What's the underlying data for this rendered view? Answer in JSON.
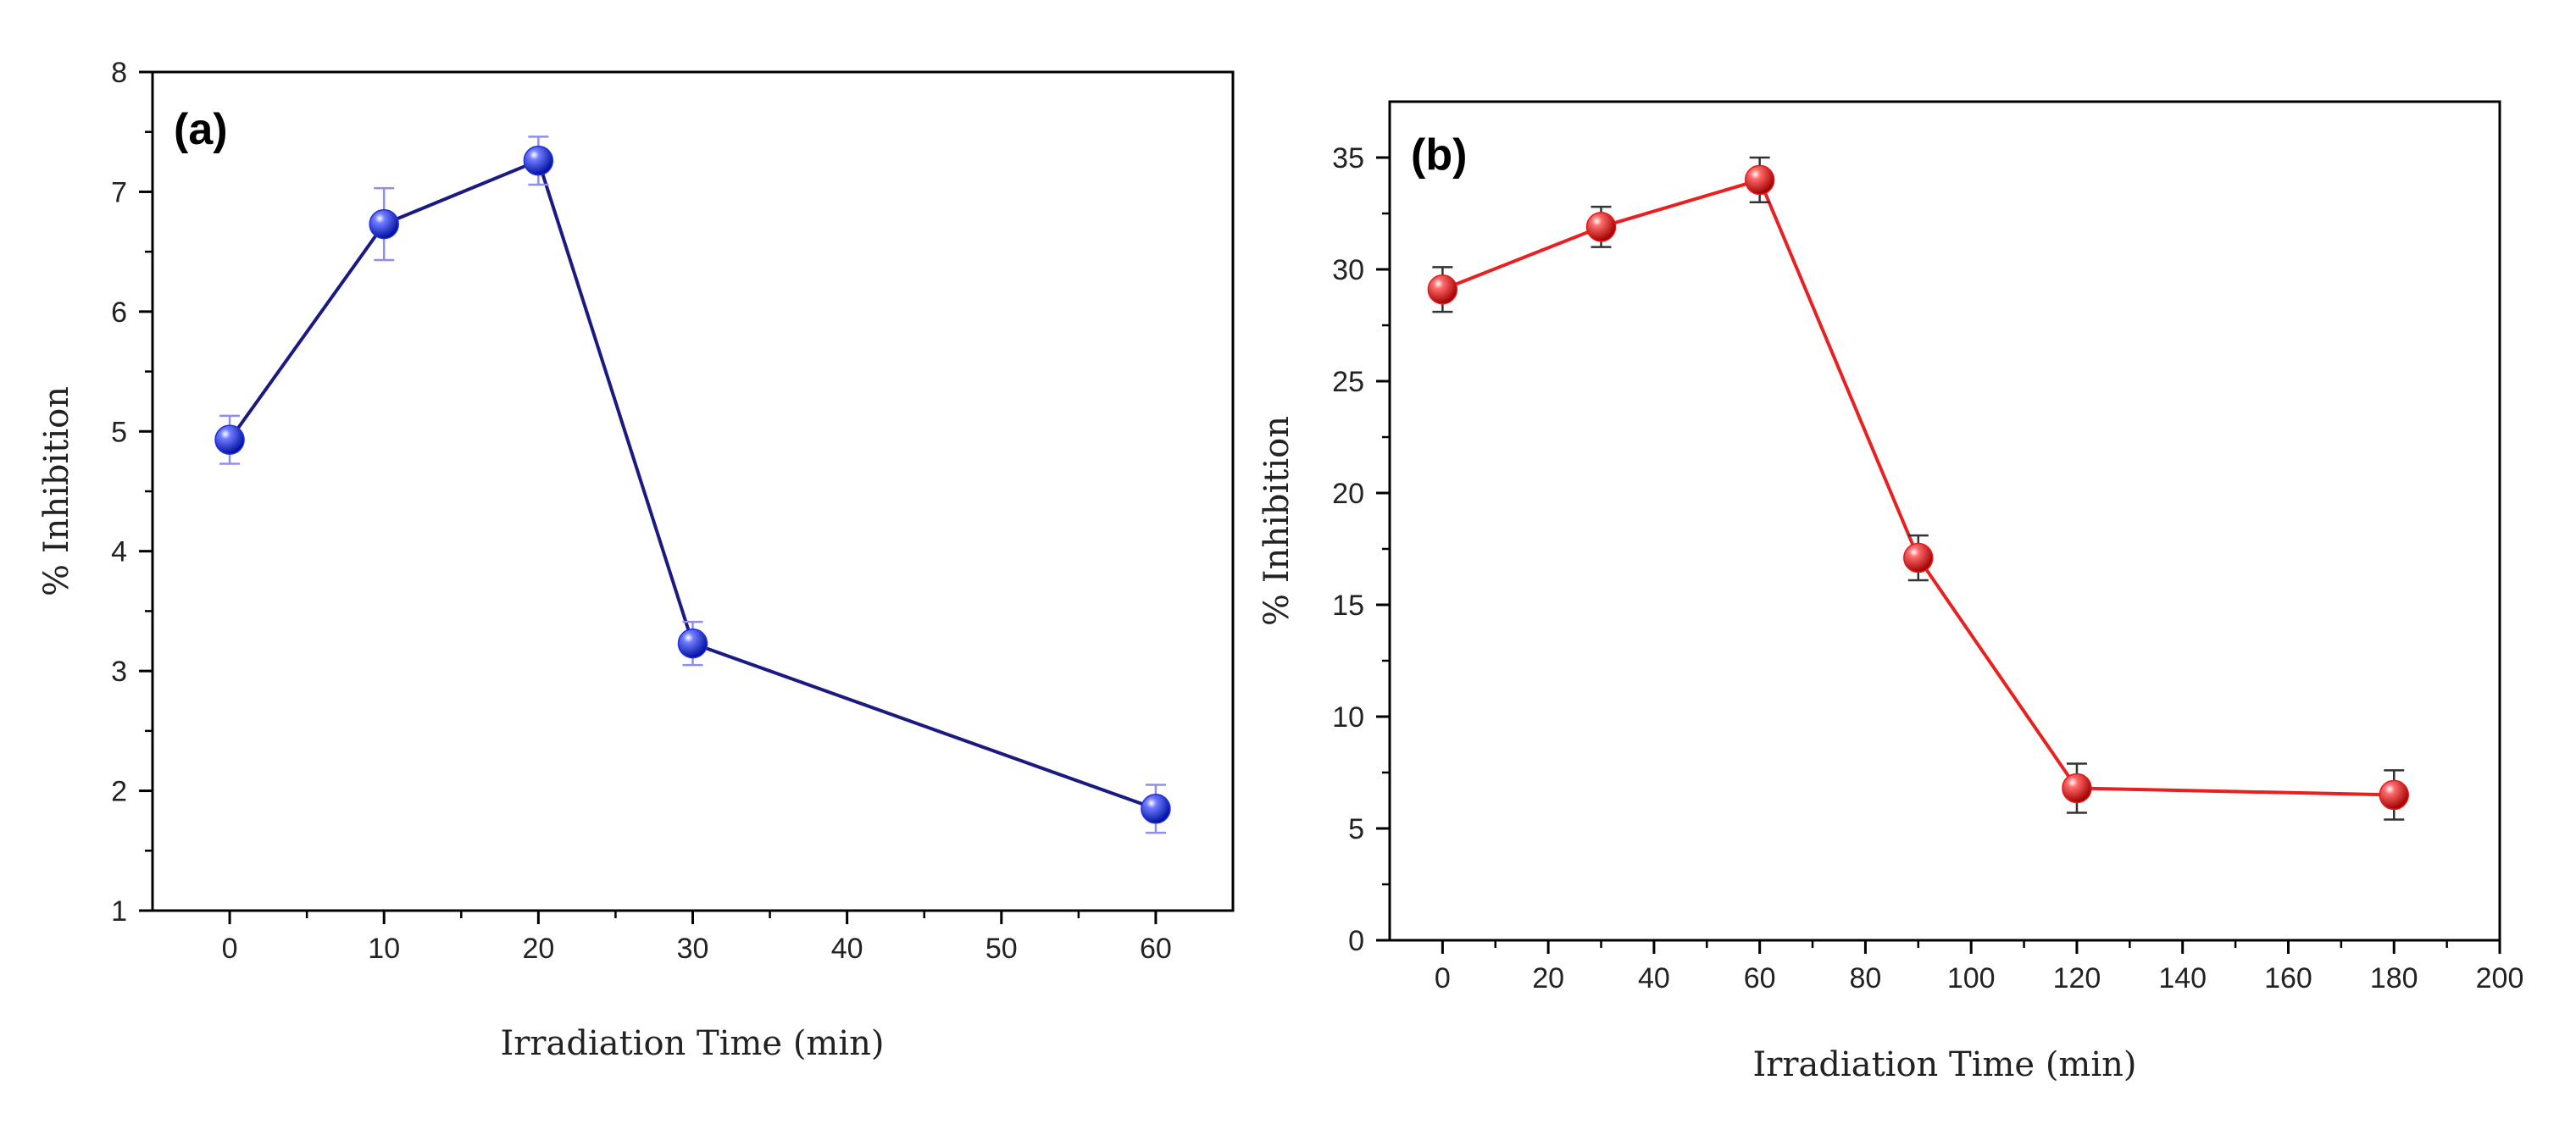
{
  "chart_data": [
    {
      "type": "line",
      "panel_label": "(a)",
      "xlabel": "Irradiation Time (min)",
      "ylabel": "% Inhibition",
      "xlim": [
        -5,
        65
      ],
      "ylim": [
        1,
        8
      ],
      "xticks": [
        0,
        10,
        20,
        30,
        40,
        50,
        60
      ],
      "yticks": [
        1,
        2,
        3,
        4,
        5,
        6,
        7,
        8
      ],
      "tick_labels_x": [
        "0",
        "10",
        "20",
        "30",
        "40",
        "50",
        "60"
      ],
      "tick_labels_y": [
        "1",
        "2",
        "3",
        "4",
        "5",
        "6",
        "7",
        "8"
      ],
      "series": [
        {
          "name": "Inhibition",
          "line_color": "#1a1a80",
          "marker_color": "#1f2ee0",
          "errorbar_color": "#8f8fe8",
          "x": [
            0,
            10,
            20,
            30,
            60
          ],
          "y": [
            4.93,
            6.73,
            7.26,
            3.23,
            1.85
          ],
          "error": [
            0.2,
            0.3,
            0.2,
            0.18,
            0.2
          ]
        }
      ]
    },
    {
      "type": "line",
      "panel_label": "(b)",
      "xlabel": "Irradiation Time (min)",
      "ylabel": "% Inhibition",
      "xlim": [
        -10,
        200
      ],
      "ylim": [
        0,
        37.5
      ],
      "xticks": [
        0,
        20,
        40,
        60,
        80,
        100,
        120,
        140,
        160,
        180,
        200
      ],
      "yticks": [
        0,
        5,
        10,
        15,
        20,
        25,
        30,
        35
      ],
      "tick_labels_x": [
        "0",
        "20",
        "40",
        "60",
        "80",
        "100",
        "120",
        "140",
        "160",
        "180",
        "200"
      ],
      "tick_labels_y": [
        "0",
        "5",
        "10",
        "15",
        "20",
        "25",
        "30",
        "35"
      ],
      "series": [
        {
          "name": "Inhibition",
          "line_color": "#e82020",
          "marker_color": "#e81818",
          "errorbar_color": "#333333",
          "x": [
            0,
            30,
            60,
            90,
            120,
            180
          ],
          "y": [
            29.1,
            31.9,
            34.0,
            17.1,
            6.8,
            6.5
          ],
          "error": [
            1.0,
            0.9,
            1.0,
            1.0,
            1.1,
            1.1
          ]
        }
      ]
    }
  ]
}
